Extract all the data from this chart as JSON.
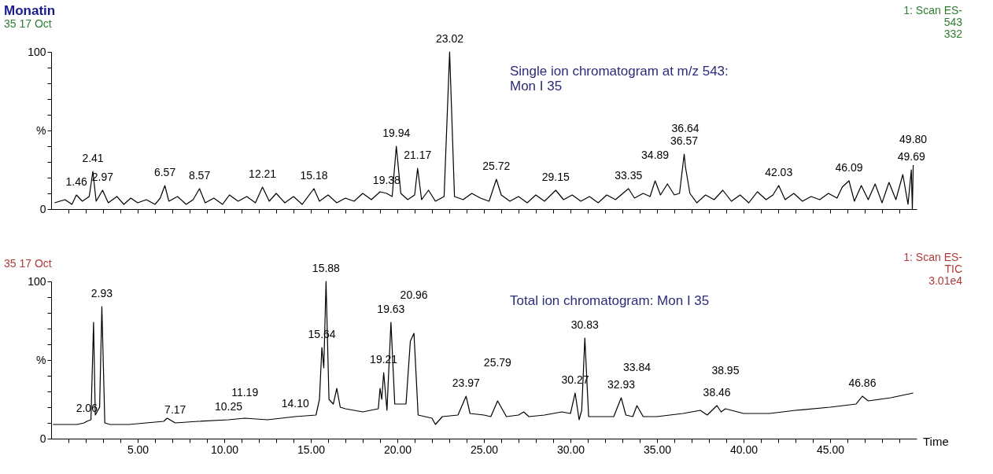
{
  "chart_data": [
    {
      "type": "line",
      "title": "Monatin",
      "subtitle": "35  17 Oct",
      "series": [
        {
          "name": "Single ion chromatogram at m/z 543: Mon I 35",
          "color": "#000000",
          "x": [
            0.2,
            0.8,
            1.2,
            1.46,
            1.8,
            2.2,
            2.41,
            2.6,
            2.97,
            3.3,
            3.8,
            4.2,
            4.6,
            5.0,
            5.5,
            6.0,
            6.3,
            6.57,
            6.8,
            7.3,
            7.8,
            8.2,
            8.57,
            8.9,
            9.4,
            9.9,
            10.3,
            10.8,
            11.3,
            11.8,
            12.21,
            12.6,
            13.0,
            13.5,
            14.0,
            14.5,
            15.18,
            15.5,
            16.0,
            16.5,
            17.0,
            17.5,
            18.0,
            18.5,
            19.0,
            19.38,
            19.7,
            19.94,
            20.2,
            20.6,
            21.0,
            21.17,
            21.4,
            21.8,
            22.2,
            22.7,
            23.02,
            23.3,
            23.8,
            24.3,
            24.8,
            25.3,
            25.72,
            26.0,
            26.5,
            27.0,
            27.5,
            28.0,
            28.5,
            29.15,
            29.6,
            30.1,
            30.6,
            31.1,
            31.6,
            32.1,
            32.6,
            33.35,
            33.7,
            34.2,
            34.6,
            34.89,
            35.2,
            35.6,
            36.0,
            36.3,
            36.57,
            36.64,
            36.9,
            37.3,
            37.8,
            38.3,
            38.8,
            39.3,
            39.8,
            40.3,
            40.8,
            41.3,
            41.7,
            42.03,
            42.4,
            42.9,
            43.4,
            43.9,
            44.4,
            44.9,
            45.4,
            45.7,
            46.09,
            46.4,
            46.8,
            47.2,
            47.6,
            48.0,
            48.4,
            48.8,
            49.2,
            49.5,
            49.69,
            49.75,
            49.8
          ],
          "values": [
            4,
            6,
            3,
            9,
            5,
            8,
            24,
            5,
            12,
            4,
            8,
            3,
            7,
            4,
            6,
            3,
            7,
            15,
            5,
            8,
            3,
            6,
            13,
            4,
            7,
            3,
            9,
            5,
            8,
            4,
            14,
            5,
            10,
            4,
            8,
            3,
            13,
            5,
            9,
            4,
            7,
            5,
            10,
            6,
            11,
            10,
            8,
            40,
            10,
            6,
            9,
            26,
            6,
            12,
            5,
            8,
            100,
            8,
            6,
            10,
            7,
            5,
            19,
            9,
            5,
            8,
            4,
            9,
            5,
            12,
            6,
            9,
            5,
            8,
            4,
            9,
            6,
            13,
            7,
            10,
            8,
            18,
            9,
            16,
            9,
            10,
            35,
            27,
            10,
            4,
            9,
            6,
            12,
            5,
            9,
            4,
            11,
            6,
            9,
            15,
            6,
            10,
            5,
            8,
            6,
            10,
            7,
            14,
            18,
            5,
            15,
            6,
            16,
            4,
            17,
            6,
            22,
            3,
            25,
            0,
            28
          ]
        }
      ],
      "xlim": [
        0,
        50
      ],
      "xticks": [
        {
          "value": 1,
          "label": null
        },
        {
          "value": 2,
          "label": null
        },
        {
          "value": 3,
          "label": null
        },
        {
          "value": 4,
          "label": null
        },
        {
          "value": 5,
          "label": null
        },
        {
          "value": 6,
          "label": null
        },
        {
          "value": 7,
          "label": null
        },
        {
          "value": 8,
          "label": null
        },
        {
          "value": 9,
          "label": null
        },
        {
          "value": 10,
          "label": null
        },
        {
          "value": 11,
          "label": null
        },
        {
          "value": 12,
          "label": null
        },
        {
          "value": 13,
          "label": null
        },
        {
          "value": 14,
          "label": null
        },
        {
          "value": 15,
          "label": null
        },
        {
          "value": 16,
          "label": null
        },
        {
          "value": 17,
          "label": null
        },
        {
          "value": 18,
          "label": null
        },
        {
          "value": 19,
          "label": null
        },
        {
          "value": 20,
          "label": null
        },
        {
          "value": 21,
          "label": null
        },
        {
          "value": 22,
          "label": null
        },
        {
          "value": 23,
          "label": null
        },
        {
          "value": 24,
          "label": null
        },
        {
          "value": 25,
          "label": null
        },
        {
          "value": 26,
          "label": null
        },
        {
          "value": 27,
          "label": null
        },
        {
          "value": 28,
          "label": null
        },
        {
          "value": 29,
          "label": null
        },
        {
          "value": 30,
          "label": null
        },
        {
          "value": 31,
          "label": null
        },
        {
          "value": 32,
          "label": null
        },
        {
          "value": 33,
          "label": null
        },
        {
          "value": 34,
          "label": null
        },
        {
          "value": 35,
          "label": null
        },
        {
          "value": 36,
          "label": null
        },
        {
          "value": 37,
          "label": null
        },
        {
          "value": 38,
          "label": null
        },
        {
          "value": 39,
          "label": null
        },
        {
          "value": 40,
          "label": null
        },
        {
          "value": 41,
          "label": null
        },
        {
          "value": 42,
          "label": null
        },
        {
          "value": 43,
          "label": null
        },
        {
          "value": 44,
          "label": null
        },
        {
          "value": 45,
          "label": null
        },
        {
          "value": 46,
          "label": null
        },
        {
          "value": 47,
          "label": null
        },
        {
          "value": 48,
          "label": null
        },
        {
          "value": 49,
          "label": null
        }
      ],
      "ylim": [
        0,
        100
      ],
      "yticks": [
        0,
        {
          "value": 10,
          "label": null
        },
        {
          "value": 20,
          "label": null
        },
        {
          "value": 30,
          "label": null
        },
        {
          "value": 40,
          "label": null
        },
        {
          "value": 50,
          "label": "%"
        },
        {
          "value": 60,
          "label": null
        },
        {
          "value": 70,
          "label": null
        },
        {
          "value": 80,
          "label": null
        },
        {
          "value": 90,
          "label": null
        },
        100
      ],
      "tick_labels": "y",
      "grid": false,
      "annotations": [
        "1: Scan ES-",
        "543",
        "332",
        {
          "text": "1.46",
          "x": 1.46,
          "y": 9
        },
        {
          "text": "2.41",
          "x": 2.41,
          "y": 24
        },
        {
          "text": "2.97",
          "x": 2.97,
          "y": 12
        },
        {
          "text": "6.57",
          "x": 6.57,
          "y": 15
        },
        {
          "text": "8.57",
          "x": 8.57,
          "y": 13
        },
        {
          "text": "12.21",
          "x": 12.21,
          "y": 14
        },
        {
          "text": "15.18",
          "x": 15.18,
          "y": 13
        },
        {
          "text": "19.38",
          "x": 19.38,
          "y": 10
        },
        {
          "text": "19.94",
          "x": 19.94,
          "y": 40
        },
        {
          "text": "21.17",
          "x": 21.17,
          "y": 26
        },
        {
          "text": "23.02",
          "x": 23.02,
          "y": 100
        },
        {
          "text": "25.72",
          "x": 25.72,
          "y": 19
        },
        {
          "text": "29.15",
          "x": 29.15,
          "y": 12
        },
        {
          "text": "33.35",
          "x": 33.35,
          "y": 13
        },
        {
          "text": "34.89",
          "x": 34.89,
          "y": 18
        },
        {
          "text": "36.57",
          "x": 36.57,
          "y": 35
        },
        {
          "text": "36.64",
          "x": 36.64,
          "y": 27
        },
        {
          "text": "42.03",
          "x": 42.03,
          "y": 15
        },
        {
          "text": "46.09",
          "x": 46.09,
          "y": 18
        },
        {
          "text": "49.69",
          "x": 49.69,
          "y": 25
        },
        {
          "text": "49.80",
          "x": 49.8,
          "y": 28
        }
      ]
    },
    {
      "type": "line",
      "subtitle": "35  17 Oct",
      "xlabel": "Time",
      "series": [
        {
          "name": "Total ion chromatogram: Mon I 35",
          "color": "#000000",
          "x": [
            0.1,
            1.5,
            1.9,
            2.06,
            2.3,
            2.45,
            2.55,
            2.7,
            2.8,
            2.93,
            3.1,
            3.4,
            4.5,
            5.5,
            6.5,
            6.7,
            7.17,
            8.5,
            10.25,
            11.19,
            12.5,
            14.1,
            15.3,
            15.5,
            15.64,
            15.75,
            15.88,
            16.05,
            16.3,
            16.5,
            16.7,
            17.0,
            18.0,
            18.9,
            19.0,
            19.1,
            19.21,
            19.4,
            19.63,
            19.85,
            20.5,
            20.75,
            20.96,
            21.2,
            21.6,
            22.0,
            22.2,
            22.6,
            23.5,
            23.97,
            24.2,
            25.0,
            25.4,
            25.79,
            26.3,
            27.0,
            27.3,
            27.6,
            28.5,
            29.5,
            30.0,
            30.27,
            30.5,
            30.65,
            30.83,
            31.05,
            31.4,
            32.5,
            32.93,
            33.2,
            33.6,
            33.84,
            34.2,
            35.0,
            36.5,
            37.5,
            37.9,
            38.46,
            38.7,
            38.95,
            40.0,
            41.5,
            43.0,
            45.0,
            46.5,
            46.86,
            47.2,
            48.5,
            49.8
          ],
          "values": [
            9,
            9,
            10,
            11,
            12,
            74,
            15,
            18,
            20,
            84,
            10,
            9,
            9,
            10,
            11,
            13,
            10,
            11,
            12,
            13,
            12,
            14,
            15,
            25,
            58,
            45,
            100,
            25,
            22,
            32,
            20,
            19,
            17,
            19,
            32,
            25,
            42,
            18,
            74,
            22,
            22,
            62,
            67,
            15,
            14,
            13,
            9,
            14,
            15,
            27,
            16,
            15,
            14,
            24,
            14,
            15,
            17,
            14,
            15,
            17,
            16,
            29,
            12,
            18,
            64,
            14,
            14,
            14,
            26,
            15,
            14,
            21,
            14,
            14,
            16,
            18,
            15,
            21,
            17,
            19,
            16,
            16,
            18,
            20,
            22,
            27,
            24,
            26,
            29
          ]
        }
      ],
      "xlim": [
        0,
        50
      ],
      "xticks": [
        {
          "value": 1,
          "label": null
        },
        {
          "value": 2,
          "label": null
        },
        {
          "value": 3,
          "label": null
        },
        {
          "value": 4,
          "label": null
        },
        {
          "value": 5,
          "label": "5.00"
        },
        {
          "value": 6,
          "label": null
        },
        {
          "value": 7,
          "label": null
        },
        {
          "value": 8,
          "label": null
        },
        {
          "value": 9,
          "label": null
        },
        {
          "value": 10,
          "label": "10.00"
        },
        {
          "value": 11,
          "label": null
        },
        {
          "value": 12,
          "label": null
        },
        {
          "value": 13,
          "label": null
        },
        {
          "value": 14,
          "label": null
        },
        {
          "value": 15,
          "label": "15.00"
        },
        {
          "value": 16,
          "label": null
        },
        {
          "value": 17,
          "label": null
        },
        {
          "value": 18,
          "label": null
        },
        {
          "value": 19,
          "label": null
        },
        {
          "value": 20,
          "label": "20.00"
        },
        {
          "value": 21,
          "label": null
        },
        {
          "value": 22,
          "label": null
        },
        {
          "value": 23,
          "label": null
        },
        {
          "value": 24,
          "label": null
        },
        {
          "value": 25,
          "label": "25.00"
        },
        {
          "value": 26,
          "label": null
        },
        {
          "value": 27,
          "label": null
        },
        {
          "value": 28,
          "label": null
        },
        {
          "value": 29,
          "label": null
        },
        {
          "value": 30,
          "label": "30.00"
        },
        {
          "value": 31,
          "label": null
        },
        {
          "value": 32,
          "label": null
        },
        {
          "value": 33,
          "label": null
        },
        {
          "value": 34,
          "label": null
        },
        {
          "value": 35,
          "label": "35.00"
        },
        {
          "value": 36,
          "label": null
        },
        {
          "value": 37,
          "label": null
        },
        {
          "value": 38,
          "label": null
        },
        {
          "value": 39,
          "label": null
        },
        {
          "value": 40,
          "label": "40.00"
        },
        {
          "value": 41,
          "label": null
        },
        {
          "value": 42,
          "label": null
        },
        {
          "value": 43,
          "label": null
        },
        {
          "value": 44,
          "label": null
        },
        {
          "value": 45,
          "label": "45.00"
        },
        {
          "value": 46,
          "label": null
        },
        {
          "value": 47,
          "label": null
        },
        {
          "value": 48,
          "label": null
        },
        {
          "value": 49,
          "label": null
        }
      ],
      "ylim": [
        0,
        100
      ],
      "yticks": [
        0,
        {
          "value": 10,
          "label": null
        },
        {
          "value": 20,
          "label": null
        },
        {
          "value": 30,
          "label": null
        },
        {
          "value": 40,
          "label": null
        },
        {
          "value": 50,
          "label": "%"
        },
        {
          "value": 60,
          "label": null
        },
        {
          "value": 70,
          "label": null
        },
        {
          "value": 80,
          "label": null
        },
        {
          "value": 90,
          "label": null
        },
        100
      ],
      "grid": false,
      "annotations": [
        "1: Scan ES-",
        "TIC",
        "3.01e4",
        {
          "text": "2.06",
          "x": 2.06,
          "y": 11
        },
        {
          "text": "2.93",
          "x": 2.93,
          "y": 84
        },
        {
          "text": "7.17",
          "x": 7.17,
          "y": 10
        },
        {
          "text": "10.25",
          "x": 10.25,
          "y": 12
        },
        {
          "text": "11.19",
          "x": 11.19,
          "y": 13
        },
        {
          "text": "14.10",
          "x": 14.1,
          "y": 14
        },
        {
          "text": "15.64",
          "x": 15.64,
          "y": 58
        },
        {
          "text": "15.88",
          "x": 15.88,
          "y": 100
        },
        {
          "text": "19.21",
          "x": 19.21,
          "y": 42
        },
        {
          "text": "19.63",
          "x": 19.63,
          "y": 74
        },
        {
          "text": "20.96",
          "x": 20.96,
          "y": 67
        },
        {
          "text": "23.97",
          "x": 23.97,
          "y": 27
        },
        {
          "text": "25.79",
          "x": 25.79,
          "y": 24
        },
        {
          "text": "30.27",
          "x": 30.27,
          "y": 29
        },
        {
          "text": "30.83",
          "x": 30.83,
          "y": 64
        },
        {
          "text": "32.93",
          "x": 32.93,
          "y": 26
        },
        {
          "text": "33.84",
          "x": 33.84,
          "y": 21
        },
        {
          "text": "38.46",
          "x": 38.46,
          "y": 21
        },
        {
          "text": "38.95",
          "x": 38.95,
          "y": 19
        },
        {
          "text": "46.86",
          "x": 46.86,
          "y": 27
        }
      ]
    }
  ]
}
